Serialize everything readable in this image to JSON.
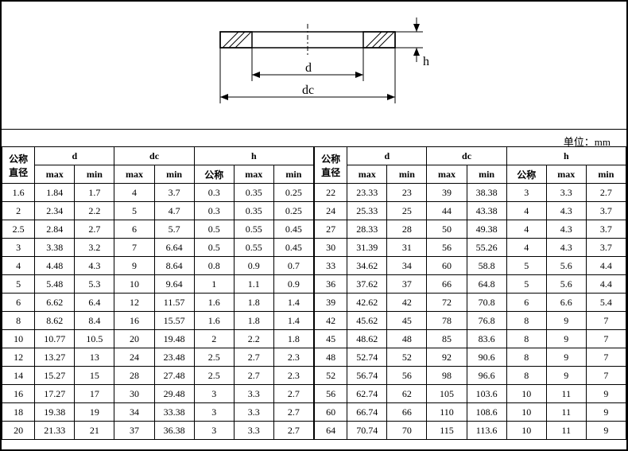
{
  "unit_label": "单位：mm",
  "diagram": {
    "labels": {
      "d": "d",
      "dc": "dc",
      "h": "h"
    },
    "colors": {
      "stroke": "#000000",
      "hatch": "#000000",
      "bg": "#ffffff"
    },
    "fontsize": 16,
    "line_width": 1.5
  },
  "headers": {
    "nominal_diameter": "公称直径",
    "d": "d",
    "dc": "dc",
    "h": "h",
    "max": "max",
    "min": "min",
    "nominal": "公称"
  },
  "table_left": {
    "rows": [
      [
        "1.6",
        "1.84",
        "1.7",
        "4",
        "3.7",
        "0.3",
        "0.35",
        "0.25"
      ],
      [
        "2",
        "2.34",
        "2.2",
        "5",
        "4.7",
        "0.3",
        "0.35",
        "0.25"
      ],
      [
        "2.5",
        "2.84",
        "2.7",
        "6",
        "5.7",
        "0.5",
        "0.55",
        "0.45"
      ],
      [
        "3",
        "3.38",
        "3.2",
        "7",
        "6.64",
        "0.5",
        "0.55",
        "0.45"
      ],
      [
        "4",
        "4.48",
        "4.3",
        "9",
        "8.64",
        "0.8",
        "0.9",
        "0.7"
      ],
      [
        "5",
        "5.48",
        "5.3",
        "10",
        "9.64",
        "1",
        "1.1",
        "0.9"
      ],
      [
        "6",
        "6.62",
        "6.4",
        "12",
        "11.57",
        "1.6",
        "1.8",
        "1.4"
      ],
      [
        "8",
        "8.62",
        "8.4",
        "16",
        "15.57",
        "1.6",
        "1.8",
        "1.4"
      ],
      [
        "10",
        "10.77",
        "10.5",
        "20",
        "19.48",
        "2",
        "2.2",
        "1.8"
      ],
      [
        "12",
        "13.27",
        "13",
        "24",
        "23.48",
        "2.5",
        "2.7",
        "2.3"
      ],
      [
        "14",
        "15.27",
        "15",
        "28",
        "27.48",
        "2.5",
        "2.7",
        "2.3"
      ],
      [
        "16",
        "17.27",
        "17",
        "30",
        "29.48",
        "3",
        "3.3",
        "2.7"
      ],
      [
        "18",
        "19.38",
        "19",
        "34",
        "33.38",
        "3",
        "3.3",
        "2.7"
      ],
      [
        "20",
        "21.33",
        "21",
        "37",
        "36.38",
        "3",
        "3.3",
        "2.7"
      ]
    ]
  },
  "table_right": {
    "rows": [
      [
        "22",
        "23.33",
        "23",
        "39",
        "38.38",
        "3",
        "3.3",
        "2.7"
      ],
      [
        "24",
        "25.33",
        "25",
        "44",
        "43.38",
        "4",
        "4.3",
        "3.7"
      ],
      [
        "27",
        "28.33",
        "28",
        "50",
        "49.38",
        "4",
        "4.3",
        "3.7"
      ],
      [
        "30",
        "31.39",
        "31",
        "56",
        "55.26",
        "4",
        "4.3",
        "3.7"
      ],
      [
        "33",
        "34.62",
        "34",
        "60",
        "58.8",
        "5",
        "5.6",
        "4.4"
      ],
      [
        "36",
        "37.62",
        "37",
        "66",
        "64.8",
        "5",
        "5.6",
        "4.4"
      ],
      [
        "39",
        "42.62",
        "42",
        "72",
        "70.8",
        "6",
        "6.6",
        "5.4"
      ],
      [
        "42",
        "45.62",
        "45",
        "78",
        "76.8",
        "8",
        "9",
        "7"
      ],
      [
        "45",
        "48.62",
        "48",
        "85",
        "83.6",
        "8",
        "9",
        "7"
      ],
      [
        "48",
        "52.74",
        "52",
        "92",
        "90.6",
        "8",
        "9",
        "7"
      ],
      [
        "52",
        "56.74",
        "56",
        "98",
        "96.6",
        "8",
        "9",
        "7"
      ],
      [
        "56",
        "62.74",
        "62",
        "105",
        "103.6",
        "10",
        "11",
        "9"
      ],
      [
        "60",
        "66.74",
        "66",
        "110",
        "108.6",
        "10",
        "11",
        "9"
      ],
      [
        "64",
        "70.74",
        "70",
        "115",
        "113.6",
        "10",
        "11",
        "9"
      ]
    ]
  }
}
